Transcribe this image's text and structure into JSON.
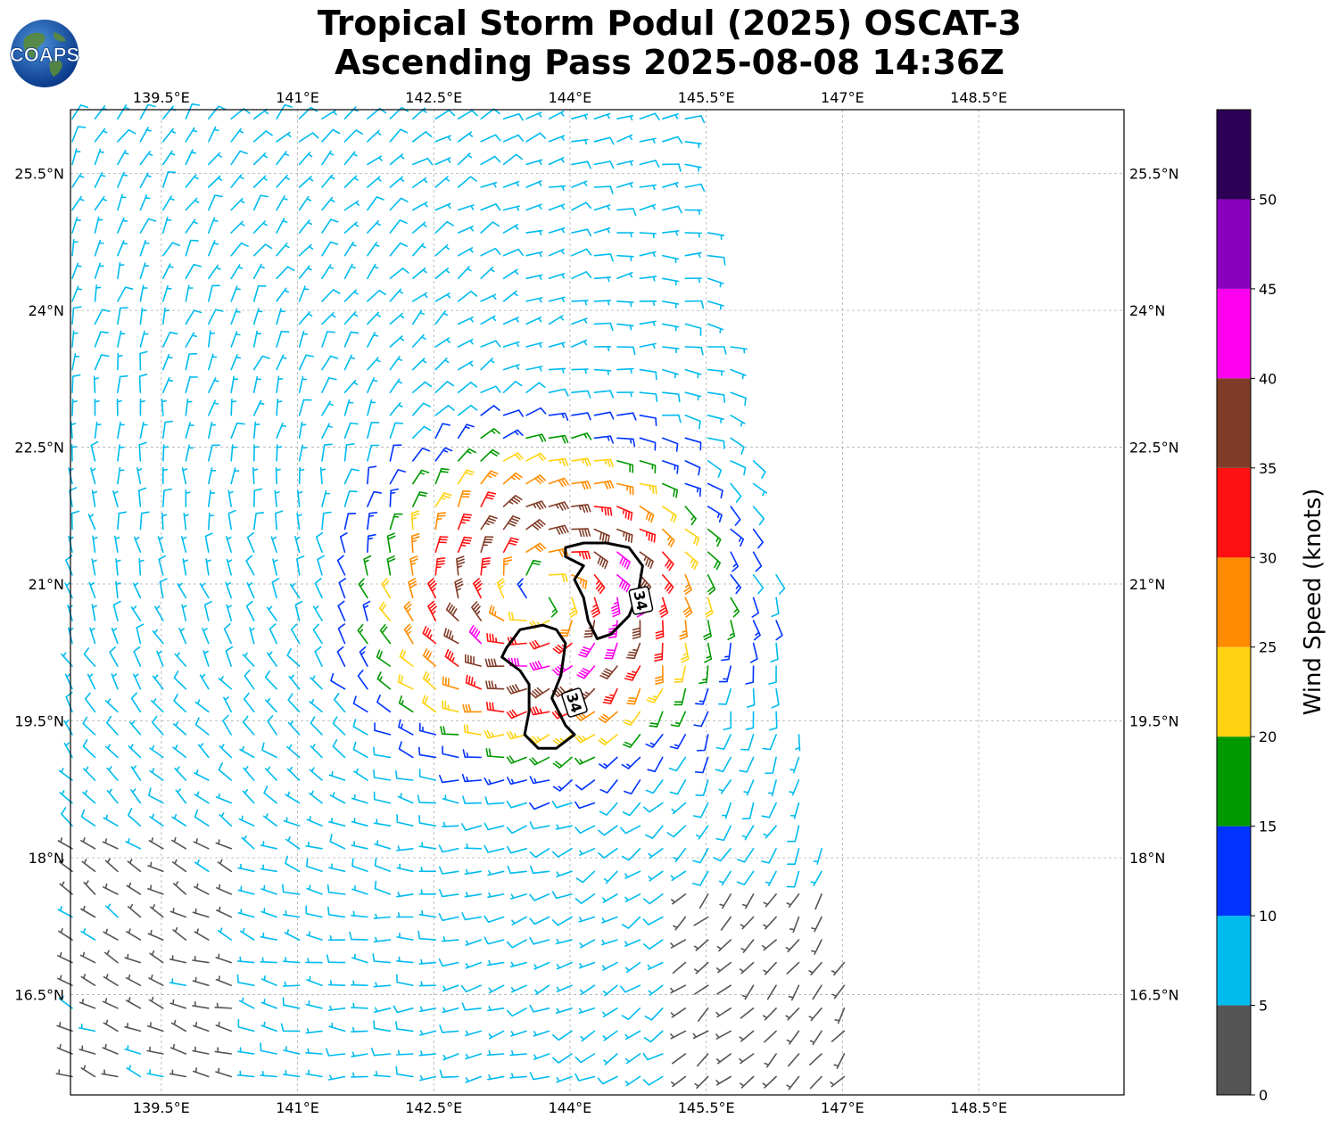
{
  "title": {
    "line1": "Tropical Storm Podul (2025) OSCAT-3",
    "line2": "Ascending Pass 2025-08-08 14:36Z"
  },
  "logo": {
    "text": "COAPS",
    "icon": "globe-icon"
  },
  "map": {
    "lon_range": [
      138.5,
      150.1
    ],
    "lat_range": [
      15.4,
      26.2
    ],
    "lon_ticks": [
      {
        "value": 139.5,
        "label": "139.5°E"
      },
      {
        "value": 141.0,
        "label": "141°E"
      },
      {
        "value": 142.5,
        "label": "142.5°E"
      },
      {
        "value": 144.0,
        "label": "144°E"
      },
      {
        "value": 145.5,
        "label": "145.5°E"
      },
      {
        "value": 147.0,
        "label": "147°E"
      },
      {
        "value": 148.5,
        "label": "148.5°E"
      }
    ],
    "lat_ticks": [
      {
        "value": 25.5,
        "label": "25.5°N"
      },
      {
        "value": 24.0,
        "label": "24°N"
      },
      {
        "value": 22.5,
        "label": "22.5°N"
      },
      {
        "value": 21.0,
        "label": "21°N"
      },
      {
        "value": 19.5,
        "label": "19.5°N"
      },
      {
        "value": 18.0,
        "label": "18°N"
      },
      {
        "value": 16.5,
        "label": "16.5°N"
      }
    ],
    "gridlines": true,
    "storm_center": {
      "lon": 143.7,
      "lat": 20.85
    },
    "contour": {
      "level_label": "34",
      "north_lobe": [
        [
          143.95,
          21.4
        ],
        [
          144.15,
          21.45
        ],
        [
          144.4,
          21.45
        ],
        [
          144.65,
          21.4
        ],
        [
          144.8,
          21.2
        ],
        [
          144.75,
          20.9
        ],
        [
          144.65,
          20.65
        ],
        [
          144.45,
          20.45
        ],
        [
          144.3,
          20.4
        ],
        [
          144.2,
          20.6
        ],
        [
          144.15,
          20.85
        ],
        [
          144.05,
          21.05
        ],
        [
          144.15,
          21.2
        ],
        [
          143.95,
          21.3
        ]
      ],
      "south_lobe": [
        [
          143.3,
          20.3
        ],
        [
          143.45,
          20.5
        ],
        [
          143.7,
          20.55
        ],
        [
          143.85,
          20.5
        ],
        [
          143.95,
          20.35
        ],
        [
          143.9,
          20.0
        ],
        [
          143.8,
          19.75
        ],
        [
          143.95,
          19.45
        ],
        [
          144.05,
          19.35
        ],
        [
          143.85,
          19.2
        ],
        [
          143.65,
          19.2
        ],
        [
          143.5,
          19.35
        ],
        [
          143.55,
          19.6
        ],
        [
          143.55,
          19.9
        ],
        [
          143.45,
          20.05
        ],
        [
          143.25,
          20.2
        ]
      ],
      "label_positions": [
        {
          "lon": 144.78,
          "lat": 20.82,
          "rotation": 78
        },
        {
          "lon": 144.05,
          "lat": 19.7,
          "rotation": 72
        }
      ]
    },
    "swath": {
      "west_lon": 138.5,
      "east_edge": [
        [
          26.2,
          145.3
        ],
        [
          24.0,
          145.7
        ],
        [
          22.5,
          146.0
        ],
        [
          21.0,
          146.3
        ],
        [
          19.5,
          146.5
        ],
        [
          18.0,
          146.8
        ],
        [
          16.5,
          147.1
        ],
        [
          15.4,
          147.3
        ]
      ]
    },
    "barb_spacing_deg": 0.25
  },
  "colorbar": {
    "label": "Wind Speed (knots)",
    "range": [
      0,
      55
    ],
    "bins": [
      {
        "from": 0,
        "to": 5,
        "color": "#555555"
      },
      {
        "from": 5,
        "to": 10,
        "color": "#00bbee"
      },
      {
        "from": 10,
        "to": 15,
        "color": "#0033ff"
      },
      {
        "from": 15,
        "to": 20,
        "color": "#009900"
      },
      {
        "from": 20,
        "to": 25,
        "color": "#ffd211"
      },
      {
        "from": 25,
        "to": 30,
        "color": "#ff8c00"
      },
      {
        "from": 30,
        "to": 35,
        "color": "#ff1111"
      },
      {
        "from": 35,
        "to": 40,
        "color": "#803c28"
      },
      {
        "from": 40,
        "to": 45,
        "color": "#ff00ee"
      },
      {
        "from": 45,
        "to": 50,
        "color": "#8800bb"
      },
      {
        "from": 50,
        "to": 55,
        "color": "#2c0055"
      }
    ],
    "ticks": [
      {
        "value": 0,
        "label": "0"
      },
      {
        "value": 5,
        "label": "5"
      },
      {
        "value": 10,
        "label": "10"
      },
      {
        "value": 15,
        "label": "15"
      },
      {
        "value": 20,
        "label": "20"
      },
      {
        "value": 25,
        "label": "25"
      },
      {
        "value": 30,
        "label": "30"
      },
      {
        "value": 35,
        "label": "35"
      },
      {
        "value": 40,
        "label": "40"
      },
      {
        "value": 45,
        "label": "45"
      },
      {
        "value": 50,
        "label": "50"
      }
    ]
  }
}
